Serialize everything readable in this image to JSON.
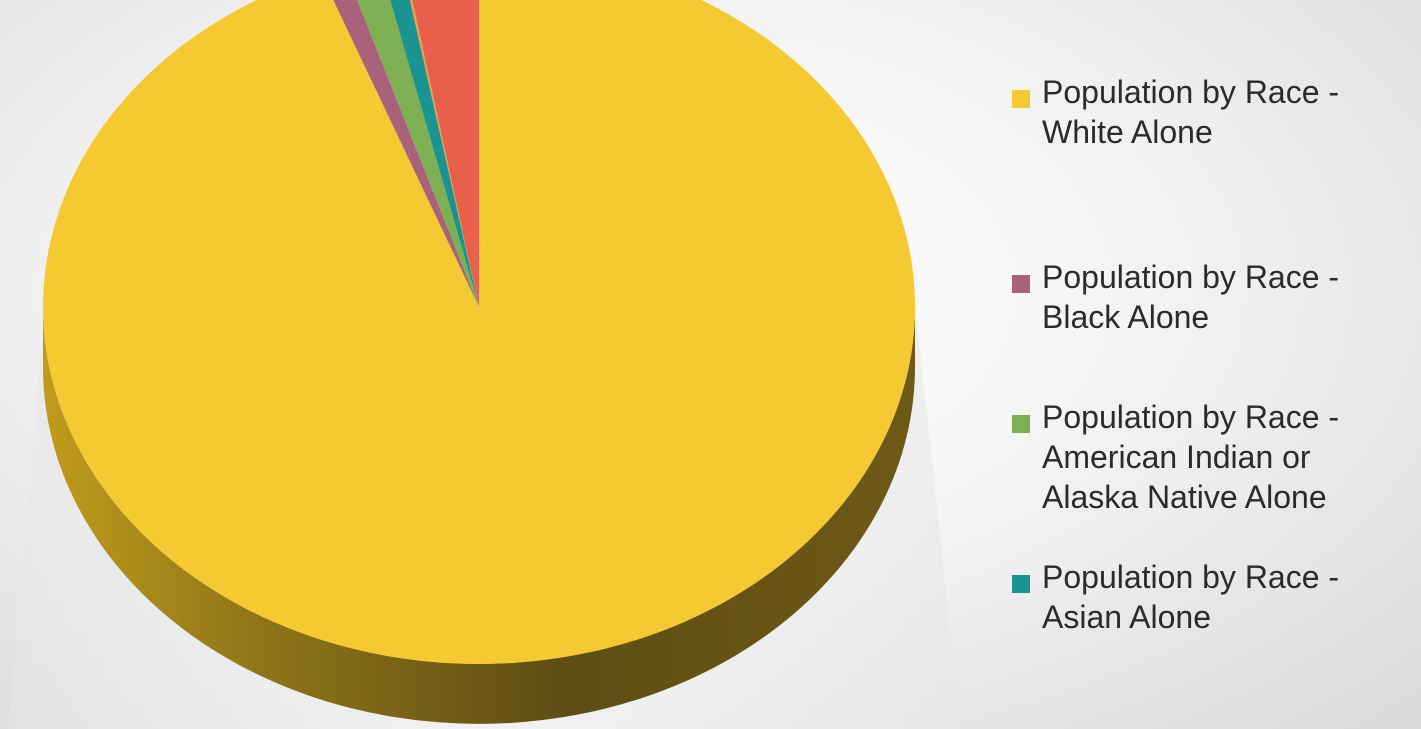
{
  "chart_data": {
    "type": "pie",
    "three_d": true,
    "title": "",
    "legend_position": "right",
    "legend": {
      "items": [
        {
          "line1": "Population by Race -",
          "line2": "White Alone",
          "line3": ""
        },
        {
          "line1": "Population by Race -",
          "line2": "Black Alone",
          "line3": ""
        },
        {
          "line1": "Population by Race -",
          "line2": "American Indian or",
          "line3": "Alaska Native Alone"
        },
        {
          "line1": "Population by Race -",
          "line2": "Asian Alone",
          "line3": ""
        }
      ]
    },
    "slices": [
      {
        "name": "Population by Race - White Alone",
        "value": 94.1,
        "color": "#F5C932"
      },
      {
        "name": "Population by Race - Black Alone",
        "value": 0.9,
        "color": "#A8637A"
      },
      {
        "name": "Population by Race - American Indian or Alaska Native Alone",
        "value": 1.3,
        "color": "#7DB053"
      },
      {
        "name": "Population by Race - Asian Alone",
        "value": 0.8,
        "color": "#1B9393"
      },
      {
        "name": "",
        "value": 0.1,
        "color": "#E8A040"
      },
      {
        "name": "",
        "value": 2.8,
        "color": "#E8604C"
      }
    ]
  }
}
